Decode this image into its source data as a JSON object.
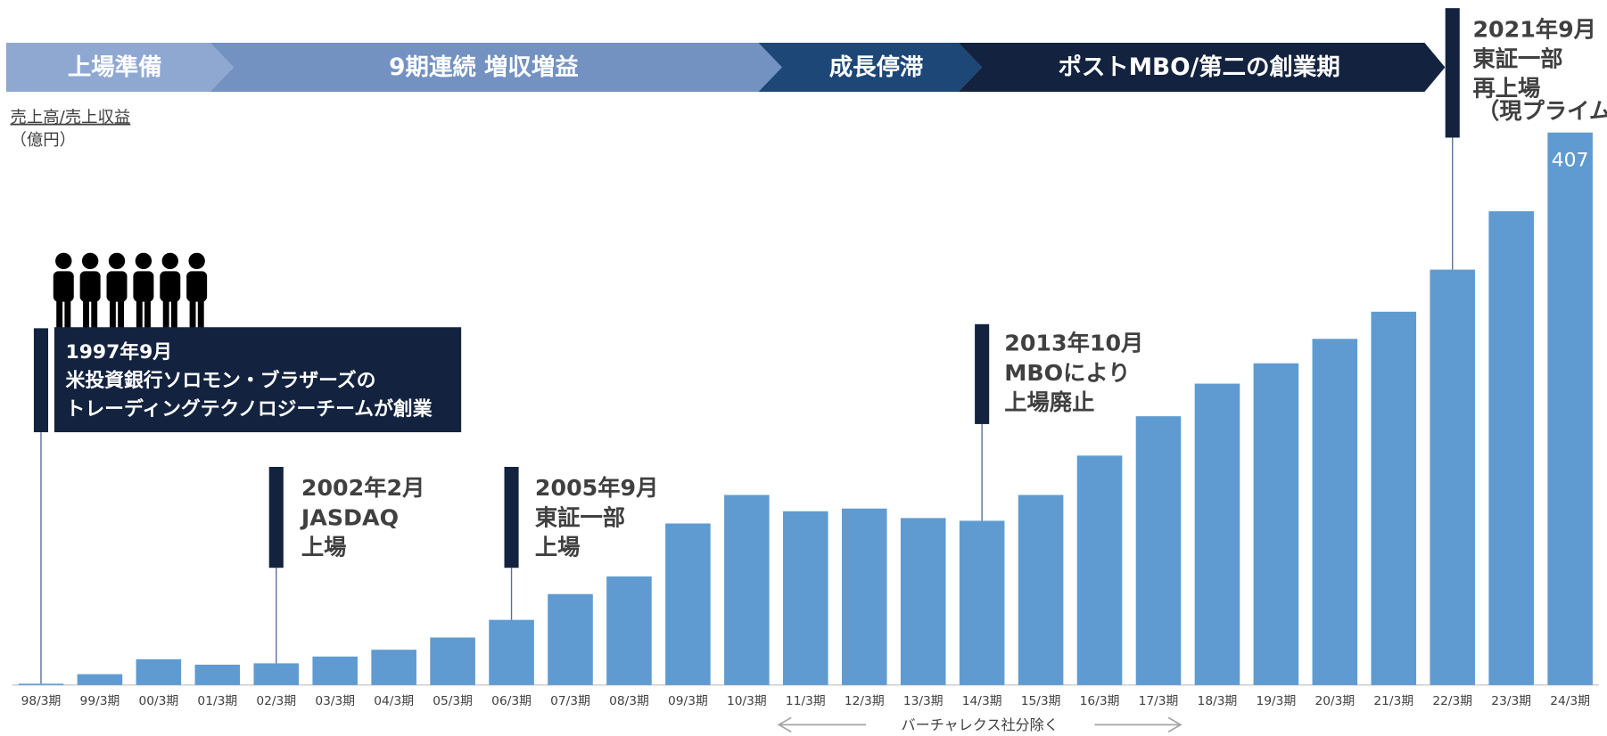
{
  "chart_data": {
    "type": "bar",
    "y_label_lines": [
      "売上高/売上収益",
      "（億円）"
    ],
    "categories": [
      "98/3期",
      "99/3期",
      "00/3期",
      "01/3期",
      "02/3期",
      "03/3期",
      "04/3期",
      "05/3期",
      "06/3期",
      "07/3期",
      "08/3期",
      "09/3期",
      "10/3期",
      "11/3期",
      "12/3期",
      "13/3期",
      "14/3期",
      "15/3期",
      "16/3期",
      "17/3期",
      "18/3期",
      "19/3期",
      "20/3期",
      "21/3期",
      "22/3期",
      "23/3期",
      "24/3期"
    ],
    "values": [
      1,
      8,
      19,
      15,
      16,
      21,
      26,
      35,
      48,
      67,
      80,
      119,
      140,
      128,
      130,
      123,
      121,
      140,
      169,
      198,
      222,
      237,
      255,
      275,
      306,
      349,
      407
    ],
    "value_labels": [
      null,
      null,
      null,
      null,
      null,
      null,
      null,
      null,
      null,
      null,
      null,
      null,
      null,
      null,
      null,
      null,
      null,
      null,
      null,
      null,
      null,
      null,
      null,
      null,
      null,
      null,
      "407"
    ],
    "color": "#5f9bd1",
    "phases": [
      "上場準備",
      "9期連続 増収増益",
      "成長停滞",
      "ポストMBO/第二の創業期"
    ],
    "annotations": [
      [
        "1997年9月",
        "米投資銀行ソロモン・ブラザーズの",
        "トレーディングテクノロジーチームが創業"
      ],
      [
        "2002年2月",
        "JASDAQ",
        "上場"
      ],
      [
        "2005年9月",
        "東証一部",
        "上場"
      ],
      [
        "2013年10月",
        "MBOにより",
        "上場廃止"
      ],
      [
        "2021年9月",
        "東証一部",
        "再上場",
        "（現プライム市場）"
      ]
    ],
    "footnote": "バーチャレクス社分除く"
  }
}
